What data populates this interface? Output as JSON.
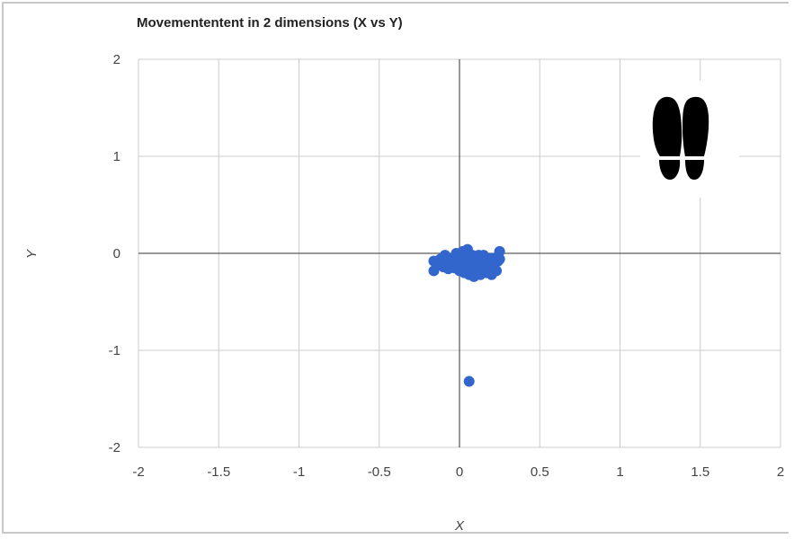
{
  "chart_data": {
    "type": "scatter",
    "title": "Movemententent in 2 dimensions (X vs Y)",
    "xlabel": "X",
    "ylabel": "Y",
    "xlim": [
      -2,
      2
    ],
    "ylim": [
      -2,
      2
    ],
    "x_ticks": [
      "-2",
      "-1.5",
      "-1",
      "-0.5",
      "0",
      "0.5",
      "1",
      "1.5",
      "2"
    ],
    "y_ticks": [
      "2",
      "1",
      "0",
      "-1",
      "-2"
    ],
    "grid": true,
    "point_color": "#3366cc",
    "series": [
      {
        "points": [
          [
            -0.16,
            -0.08
          ],
          [
            -0.16,
            -0.18
          ],
          [
            -0.14,
            -0.12
          ],
          [
            -0.12,
            -0.06
          ],
          [
            -0.1,
            -0.14
          ],
          [
            -0.09,
            -0.02
          ],
          [
            -0.08,
            -0.1
          ],
          [
            -0.07,
            -0.16
          ],
          [
            -0.06,
            -0.05
          ],
          [
            -0.05,
            -0.12
          ],
          [
            -0.04,
            -0.08
          ],
          [
            -0.03,
            -0.15
          ],
          [
            -0.02,
            0.0
          ],
          [
            -0.02,
            -0.1
          ],
          [
            -0.01,
            -0.05
          ],
          [
            0.0,
            -0.12
          ],
          [
            0.0,
            -0.18
          ],
          [
            0.01,
            -0.02
          ],
          [
            0.01,
            -0.08
          ],
          [
            0.02,
            -0.14
          ],
          [
            0.02,
            0.02
          ],
          [
            0.03,
            -0.06
          ],
          [
            0.03,
            -0.2
          ],
          [
            0.04,
            -0.1
          ],
          [
            0.04,
            0.0
          ],
          [
            0.05,
            -0.16
          ],
          [
            0.05,
            0.04
          ],
          [
            0.06,
            -0.04
          ],
          [
            0.06,
            -0.22
          ],
          [
            0.07,
            -0.12
          ],
          [
            0.07,
            -0.06
          ],
          [
            0.08,
            -0.18
          ],
          [
            0.08,
            -0.02
          ],
          [
            0.09,
            -0.1
          ],
          [
            0.09,
            -0.24
          ],
          [
            0.1,
            -0.14
          ],
          [
            0.1,
            -0.04
          ],
          [
            0.11,
            -0.2
          ],
          [
            0.11,
            -0.08
          ],
          [
            0.12,
            -0.16
          ],
          [
            0.12,
            -0.02
          ],
          [
            0.13,
            -0.12
          ],
          [
            0.13,
            -0.22
          ],
          [
            0.14,
            -0.06
          ],
          [
            0.14,
            -0.18
          ],
          [
            0.15,
            -0.1
          ],
          [
            0.15,
            -0.02
          ],
          [
            0.16,
            -0.14
          ],
          [
            0.17,
            -0.2
          ],
          [
            0.17,
            -0.08
          ],
          [
            0.18,
            -0.16
          ],
          [
            0.19,
            -0.12
          ],
          [
            0.2,
            -0.05
          ],
          [
            0.2,
            -0.22
          ],
          [
            0.21,
            -0.14
          ],
          [
            0.22,
            -0.1
          ],
          [
            0.23,
            -0.18
          ],
          [
            0.24,
            -0.08
          ],
          [
            0.25,
            0.02
          ],
          [
            0.25,
            -0.06
          ],
          [
            0.06,
            -1.32
          ]
        ]
      }
    ]
  }
}
